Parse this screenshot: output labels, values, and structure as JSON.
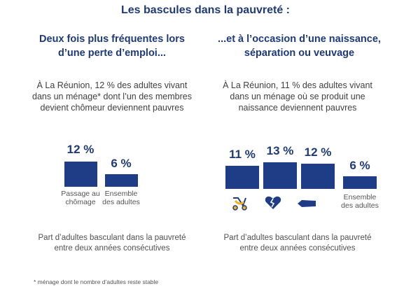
{
  "title": "Les bascules dans la pauvreté :",
  "left": {
    "heading_line1": "Deux fois plus fréquentes lors",
    "heading_line2": "d’une perte d’emploi...",
    "desc_line1": "À La Réunion, 12 % des adultes vivant",
    "desc_line2": "dans un ménage* dont l’un des membres",
    "desc_line3": "devient chômeur deviennent pauvres",
    "bars": [
      {
        "value_label": "12 %",
        "value": 12,
        "label_line1": "Passage au",
        "label_line2": "chômage"
      },
      {
        "value_label": "6 %",
        "value": 6,
        "label_line1": "Ensemble",
        "label_line2": "des adultes"
      }
    ],
    "caption_line1": "Part d’adultes basculant dans la pauvreté",
    "caption_line2": "entre deux années consécutives"
  },
  "right": {
    "heading_line1": "...et à l’occasion d’une naissance,",
    "heading_line2": "séparation ou veuvage",
    "desc_line1": "À La Réunion, 11 % des adultes vivant",
    "desc_line2": "dans un ménage où se produit une",
    "desc_line3": "naissance deviennent pauvres",
    "bars": [
      {
        "value_label": "11 %",
        "value": 11,
        "icon": "stroller-icon"
      },
      {
        "value_label": "13 %",
        "value": 13,
        "icon": "broken-heart-icon"
      },
      {
        "value_label": "12 %",
        "value": 12,
        "icon": "coffin-icon"
      },
      {
        "value_label": "6 %",
        "value": 6,
        "label_line1": "Ensemble",
        "label_line2": "des adultes"
      }
    ],
    "caption_line1": "Part d’adultes basculant dans la pauvreté",
    "caption_line2": "entre deux années consécutives"
  },
  "footnote": "* ménage dont le nombre d’adultes reste stable",
  "colors": {
    "bar": "#1f3d86",
    "heading": "#1e3a78",
    "stroller_accent": "#f0b020"
  }
}
